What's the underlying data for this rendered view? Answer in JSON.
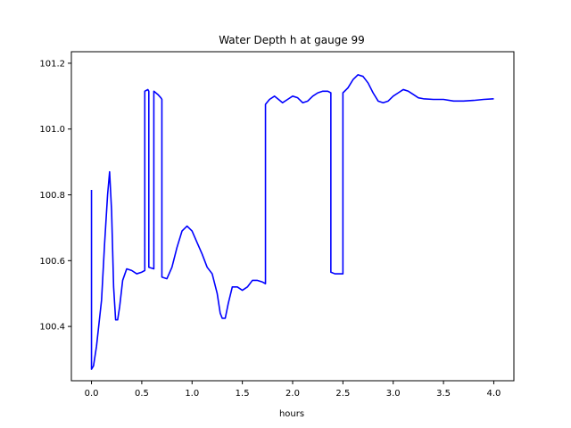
{
  "chart_data": {
    "type": "line",
    "title": "Water Depth h at gauge 99",
    "xlabel": "hours",
    "ylabel": "",
    "xlim": [
      -0.2,
      4.2
    ],
    "ylim": [
      100.235,
      101.235
    ],
    "xticks": [
      0.0,
      0.5,
      1.0,
      1.5,
      2.0,
      2.5,
      3.0,
      3.5,
      4.0
    ],
    "xtick_labels": [
      "0.0",
      "0.5",
      "1.0",
      "1.5",
      "2.0",
      "2.5",
      "3.0",
      "3.5",
      "4.0"
    ],
    "yticks": [
      100.4,
      100.6,
      100.8,
      101.0,
      101.2
    ],
    "ytick_labels": [
      "100.4",
      "100.6",
      "100.8",
      "101.0",
      "101.2"
    ],
    "grid": false,
    "legend": "none",
    "series": [
      {
        "color": "#0000ff",
        "x": [
          0.0,
          0.0,
          0.02,
          0.05,
          0.1,
          0.13,
          0.16,
          0.18,
          0.2,
          0.22,
          0.24,
          0.26,
          0.28,
          0.31,
          0.35,
          0.4,
          0.45,
          0.5,
          0.53,
          0.53,
          0.56,
          0.57,
          0.57,
          0.62,
          0.62,
          0.66,
          0.69,
          0.7,
          0.7,
          0.75,
          0.8,
          0.85,
          0.9,
          0.95,
          1.0,
          1.05,
          1.1,
          1.15,
          1.2,
          1.25,
          1.28,
          1.3,
          1.33,
          1.36,
          1.4,
          1.45,
          1.5,
          1.55,
          1.6,
          1.65,
          1.7,
          1.73,
          1.73,
          1.77,
          1.82,
          1.86,
          1.9,
          1.95,
          2.0,
          2.05,
          2.1,
          2.15,
          2.2,
          2.25,
          2.3,
          2.35,
          2.38,
          2.38,
          2.42,
          2.47,
          2.5,
          2.5,
          2.55,
          2.6,
          2.65,
          2.7,
          2.75,
          2.8,
          2.85,
          2.9,
          2.95,
          3.0,
          3.05,
          3.1,
          3.15,
          3.2,
          3.25,
          3.3,
          3.4,
          3.5,
          3.6,
          3.7,
          3.8,
          3.9,
          4.0
        ],
        "y": [
          100.815,
          100.27,
          100.28,
          100.34,
          100.48,
          100.65,
          100.8,
          100.87,
          100.75,
          100.52,
          100.42,
          100.42,
          100.46,
          100.54,
          100.575,
          100.57,
          100.56,
          100.565,
          100.57,
          101.115,
          101.12,
          101.115,
          100.58,
          100.575,
          101.115,
          101.105,
          101.095,
          101.09,
          100.55,
          100.545,
          100.58,
          100.64,
          100.69,
          100.705,
          100.69,
          100.655,
          100.62,
          100.58,
          100.56,
          100.5,
          100.44,
          100.425,
          100.425,
          100.47,
          100.52,
          100.52,
          100.51,
          100.52,
          100.54,
          100.54,
          100.535,
          100.53,
          101.075,
          101.09,
          101.1,
          101.09,
          101.08,
          101.09,
          101.1,
          101.095,
          101.08,
          101.085,
          101.1,
          101.11,
          101.115,
          101.115,
          101.11,
          100.565,
          100.56,
          100.56,
          100.56,
          101.11,
          101.125,
          101.15,
          101.165,
          101.16,
          101.14,
          101.11,
          101.085,
          101.08,
          101.085,
          101.1,
          101.11,
          101.12,
          101.115,
          101.105,
          101.095,
          101.092,
          101.09,
          101.09,
          101.085,
          101.085,
          101.087,
          101.09,
          101.092
        ]
      }
    ]
  }
}
